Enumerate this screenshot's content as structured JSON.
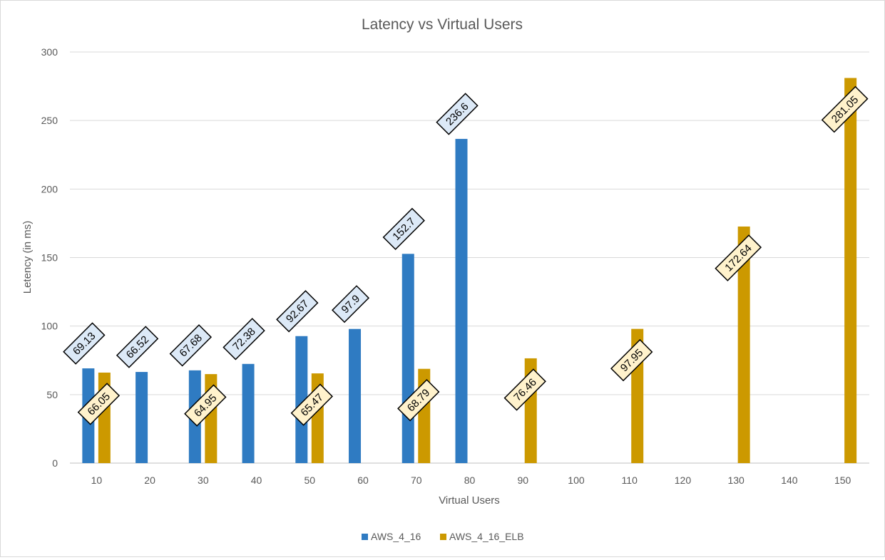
{
  "chart_data": {
    "type": "bar",
    "title": "Latency vs Virtual Users",
    "xlabel": "Virtual Users",
    "ylabel": "Letency (in ms)",
    "ylim": [
      0,
      300
    ],
    "yticks": [
      0,
      50,
      100,
      150,
      200,
      250,
      300
    ],
    "grid": true,
    "legend_position": "bottom",
    "categories": [
      "10",
      "20",
      "30",
      "40",
      "50",
      "60",
      "70",
      "80",
      "90",
      "100",
      "110",
      "120",
      "130",
      "140",
      "150"
    ],
    "series": [
      {
        "name": "AWS_4_16",
        "color": "#2f7bc2",
        "label_bg": "#dce9f7",
        "values": [
          69.13,
          66.52,
          67.68,
          72.38,
          92.67,
          97.9,
          152.7,
          236.6,
          null,
          null,
          null,
          null,
          null,
          null,
          null
        ]
      },
      {
        "name": "AWS_4_16_ELB",
        "color": "#cc9900",
        "label_bg": "#fff2cc",
        "values": [
          66.05,
          null,
          64.95,
          null,
          65.47,
          null,
          68.79,
          null,
          76.46,
          null,
          97.95,
          null,
          172.64,
          null,
          281.05
        ]
      }
    ]
  }
}
